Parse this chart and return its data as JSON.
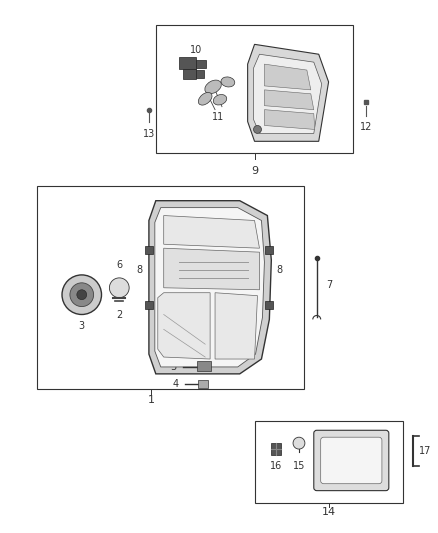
{
  "bg_color": "#ffffff",
  "line_color": "#333333",
  "part_color": "#888888",
  "light_gray": "#cccccc",
  "mid_gray": "#aaaaaa"
}
